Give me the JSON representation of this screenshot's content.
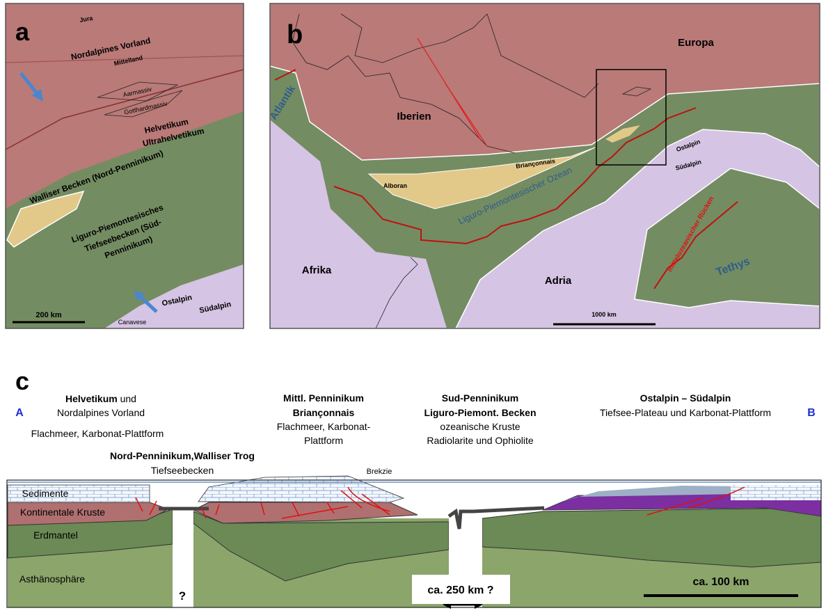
{
  "panel_a": {
    "label": "a",
    "jura": "Jura",
    "vorland": "Nordalpines Vorland",
    "mittelland": "Mittelland",
    "aarmassiv": "Aarmassiv",
    "gotthardmassiv": "Gotthardmassiv",
    "helvetikum": "Helvetikum",
    "ultrahelvetikum": "Ultrahelvetikum",
    "walliser": "Walliser Becken (Nord-Penninikum)",
    "liguro_lines": [
      "Liguro-Piemontesisches",
      "Tiefseebecken (Süd-",
      "Penninikum)"
    ],
    "ostalpin": "Ostalpin",
    "suedalpin": "Südalpin",
    "canavese": "Canavese",
    "scale": "200 km"
  },
  "panel_b": {
    "label": "b",
    "europa": "Europa",
    "atlantik": "Atlantik",
    "iberien": "Iberien",
    "brianconnais": "Briançonnais",
    "alboran": "Alboran",
    "ozean": "Liguro-Piemontesischer Ozean",
    "ostalpin": "Ostalpin",
    "suedalpin": "Südalpin",
    "ruecken": "mittelozeanischer Rücken",
    "tethys": "Tethys",
    "afrika": "Afrika",
    "adria": "Adria",
    "scale": "1000 km"
  },
  "panel_c": {
    "label": "c",
    "end_a": "A",
    "end_b": "B",
    "helvetikum": {
      "bold": "Helvetikum",
      "rest": " und",
      "line2": "Nordalpines Vorland",
      "line3": "Flachmeer, Karbonat-Plattform"
    },
    "nord": {
      "line1": "Nord-Penninikum,Walliser Trog",
      "line2": "Tiefseebecken"
    },
    "mittl": {
      "line1": "Mittl. Penninikum",
      "line2": "Briançonnais",
      "line3": "Flachmeer, Karbonat-",
      "line4": "Plattform"
    },
    "sued": {
      "line1": "Sud-Penninikum",
      "line2": "Liguro-Piemont. Becken",
      "line3": "ozeanische Kruste",
      "line4": "Radiolarite und Ophiolite"
    },
    "ost": {
      "line1": "Ostalpin – Südalpin",
      "line2": "Tiefsee-Plateau und Karbonat-Plattform"
    },
    "brekzie": "Brekzie",
    "sedimente": "Sedimente",
    "kruste": "Kontinentale Kruste",
    "erdmantel": "Erdmantel",
    "asthenosphaere": "Asthänosphäre",
    "question": "?",
    "gap": "ca. 250 km ?",
    "scale": "ca. 100 km"
  }
}
